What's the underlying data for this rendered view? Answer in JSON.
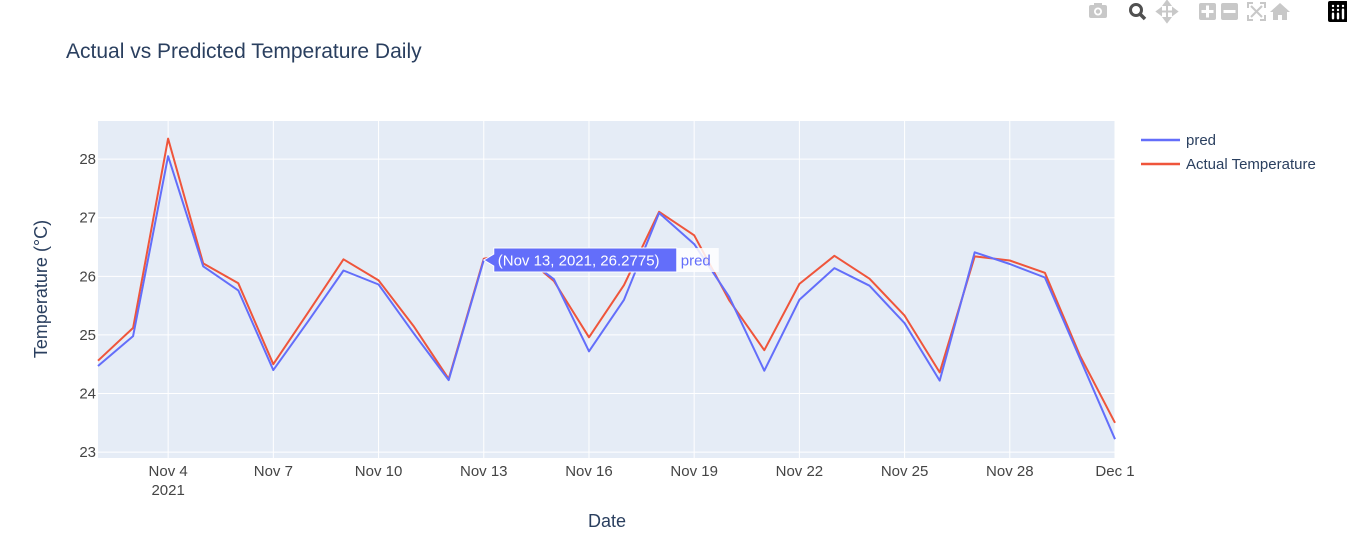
{
  "modebar": {
    "icons": [
      "camera-icon",
      "zoom-icon",
      "pan-icon",
      "zoom-in-icon",
      "zoom-out-icon",
      "autoscale-icon",
      "reset-axes-icon",
      "plotly-logo-icon"
    ]
  },
  "chart_data": {
    "type": "line",
    "title": "Actual vs Predicted Temperature Daily",
    "xlabel": "Date",
    "ylabel": "Temperature (°C)",
    "x": [
      "2021-11-02",
      "2021-11-03",
      "2021-11-04",
      "2021-11-05",
      "2021-11-06",
      "2021-11-07",
      "2021-11-08",
      "2021-11-09",
      "2021-11-10",
      "2021-11-11",
      "2021-11-12",
      "2021-11-13",
      "2021-11-14",
      "2021-11-15",
      "2021-11-16",
      "2021-11-17",
      "2021-11-18",
      "2021-11-19",
      "2021-11-20",
      "2021-11-21",
      "2021-11-22",
      "2021-11-23",
      "2021-11-24",
      "2021-11-25",
      "2021-11-26",
      "2021-11-27",
      "2021-11-28",
      "2021-11-29",
      "2021-11-30",
      "2021-12-01"
    ],
    "series": [
      {
        "name": "pred",
        "color": "#636efa",
        "values": [
          24.47,
          24.98,
          28.05,
          26.17,
          25.76,
          24.4,
          25.24,
          26.1,
          25.86,
          25.03,
          24.23,
          26.2775,
          26.4,
          25.95,
          24.72,
          25.6,
          27.08,
          26.55,
          25.65,
          24.39,
          25.6,
          26.14,
          25.84,
          25.2,
          24.22,
          26.41,
          26.21,
          25.98,
          24.6,
          23.22
        ]
      },
      {
        "name": "Actual Temperature",
        "color": "#ef553b",
        "values": [
          24.56,
          25.12,
          28.35,
          26.22,
          25.88,
          24.5,
          25.39,
          26.29,
          25.93,
          25.15,
          24.25,
          26.3,
          26.42,
          25.92,
          24.96,
          25.85,
          27.1,
          26.7,
          25.59,
          24.74,
          25.87,
          26.35,
          25.96,
          25.33,
          24.36,
          26.34,
          26.27,
          26.06,
          24.65,
          23.5
        ]
      }
    ],
    "xrange": [
      "2021-11-02",
      "2021-12-01"
    ],
    "ylim": [
      22.9,
      28.65
    ],
    "xticks": [
      {
        "date": "2021-11-04",
        "label": "Nov 4",
        "sublabel": "2021"
      },
      {
        "date": "2021-11-07",
        "label": "Nov 7"
      },
      {
        "date": "2021-11-10",
        "label": "Nov 10"
      },
      {
        "date": "2021-11-13",
        "label": "Nov 13"
      },
      {
        "date": "2021-11-16",
        "label": "Nov 16"
      },
      {
        "date": "2021-11-19",
        "label": "Nov 19"
      },
      {
        "date": "2021-11-22",
        "label": "Nov 22"
      },
      {
        "date": "2021-11-25",
        "label": "Nov 25"
      },
      {
        "date": "2021-11-28",
        "label": "Nov 28"
      },
      {
        "date": "2021-12-01",
        "label": "Dec 1"
      }
    ],
    "yticks": [
      23,
      24,
      25,
      26,
      27,
      28
    ],
    "grid": true,
    "legend": "top-right",
    "plot_bg": "#e5ecf6",
    "hover": {
      "date": "2021-11-13",
      "value": 26.2775,
      "text": "(Nov 13, 2021, 26.2775)",
      "series": "pred"
    }
  }
}
